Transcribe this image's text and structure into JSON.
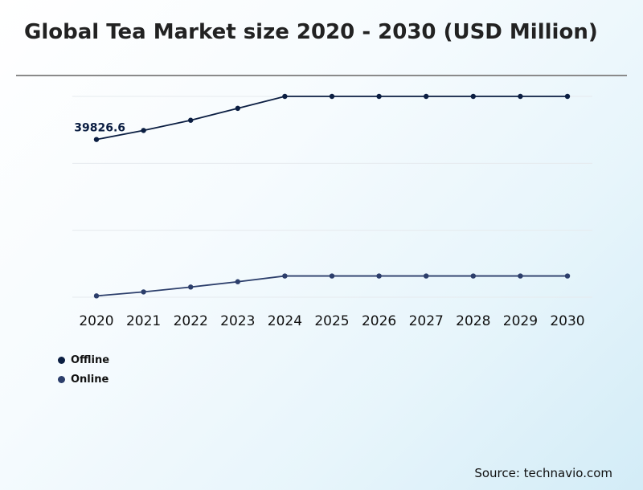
{
  "title": "Global Tea Market size 2020 - 2030 (USD Million)",
  "source": "Source: technavio.com",
  "colors": {
    "offline": "#0b1e42",
    "online": "#2c3e6b",
    "grid": "#e6eaee"
  },
  "chart_data": {
    "type": "line",
    "title": "Global Tea Market size 2020 - 2030 (USD Million)",
    "x": [
      "2020",
      "2021",
      "2022",
      "2023",
      "2024",
      "2025",
      "2026",
      "2027",
      "2028",
      "2029",
      "2030"
    ],
    "series": [
      {
        "name": "Offline",
        "values": [
          39826.6,
          40850,
          42000,
          43350,
          44700,
          44700,
          44700,
          44700,
          44700,
          44700,
          44700
        ]
      },
      {
        "name": "Online",
        "values": [
          22150,
          22600,
          23150,
          23750,
          24400,
          24400,
          24400,
          24400,
          24400,
          24400,
          24400
        ]
      }
    ],
    "data_labels": [
      {
        "series": "Offline",
        "index": 0,
        "text": "39826.6"
      }
    ],
    "ylim": [
      22000,
      44700
    ],
    "grid": true,
    "legend": "bottom-left",
    "xlabel": "",
    "ylabel": ""
  }
}
